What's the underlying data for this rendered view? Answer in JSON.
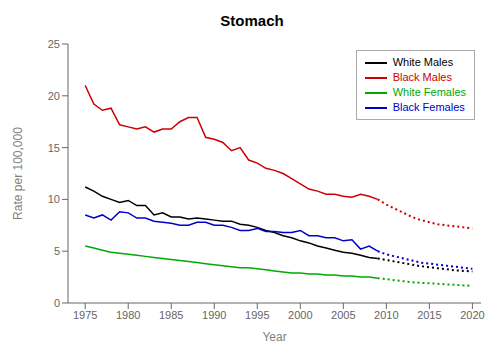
{
  "chart_data": {
    "type": "line",
    "title": "Stomach",
    "xlabel": "Year",
    "ylabel": "Rate per 100,000",
    "xlim": [
      1973,
      2021
    ],
    "ylim": [
      0,
      25
    ],
    "xticks": [
      1975,
      1980,
      1985,
      1990,
      1995,
      2000,
      2005,
      2010,
      2015,
      2020
    ],
    "yticks": [
      0,
      5,
      10,
      15,
      20,
      25
    ],
    "grid": false,
    "legend": "upper right",
    "series": [
      {
        "name": "White Males",
        "color": "#000000",
        "line_style": "solid",
        "x": [
          1975,
          1976,
          1977,
          1978,
          1979,
          1980,
          1981,
          1982,
          1983,
          1984,
          1985,
          1986,
          1987,
          1988,
          1989,
          1990,
          1991,
          1992,
          1993,
          1994,
          1995,
          1996,
          1997,
          1998,
          1999,
          2000,
          2001,
          2002,
          2003,
          2004,
          2005,
          2006,
          2007,
          2008,
          2009
        ],
        "values": [
          11.2,
          10.8,
          10.3,
          10.0,
          9.7,
          9.9,
          9.4,
          9.4,
          8.5,
          8.7,
          8.3,
          8.3,
          8.1,
          8.2,
          8.1,
          8.0,
          7.9,
          7.9,
          7.6,
          7.5,
          7.3,
          7.0,
          6.8,
          6.5,
          6.3,
          6.0,
          5.8,
          5.5,
          5.3,
          5.1,
          4.9,
          4.8,
          4.6,
          4.4,
          4.3
        ]
      },
      {
        "name": "White Males",
        "color": "#000000",
        "line_style": "dotted",
        "x": [
          2009,
          2010,
          2011,
          2012,
          2013,
          2014,
          2015,
          2016,
          2017,
          2018,
          2019,
          2020
        ],
        "values": [
          4.3,
          4.15,
          4.0,
          3.85,
          3.7,
          3.55,
          3.45,
          3.35,
          3.25,
          3.15,
          3.1,
          3.05
        ]
      },
      {
        "name": "Black Males",
        "color": "#cc0000",
        "line_style": "solid",
        "x": [
          1975,
          1976,
          1977,
          1978,
          1979,
          1980,
          1981,
          1982,
          1983,
          1984,
          1985,
          1986,
          1987,
          1988,
          1989,
          1990,
          1991,
          1992,
          1993,
          1994,
          1995,
          1996,
          1997,
          1998,
          1999,
          2000,
          2001,
          2002,
          2003,
          2004,
          2005,
          2006,
          2007,
          2008,
          2009
        ],
        "values": [
          21.0,
          19.2,
          18.6,
          18.8,
          17.2,
          17.0,
          16.8,
          17.0,
          16.5,
          16.8,
          16.8,
          17.5,
          17.9,
          17.9,
          16.0,
          15.8,
          15.5,
          14.7,
          15.0,
          13.8,
          13.5,
          13.0,
          12.8,
          12.5,
          12.0,
          11.5,
          11.0,
          10.8,
          10.5,
          10.5,
          10.3,
          10.2,
          10.5,
          10.3,
          10.0
        ]
      },
      {
        "name": "Black Males",
        "color": "#cc0000",
        "line_style": "dotted",
        "x": [
          2009,
          2010,
          2011,
          2012,
          2013,
          2014,
          2015,
          2016,
          2017,
          2018,
          2019,
          2020
        ],
        "values": [
          10.0,
          9.5,
          9.1,
          8.7,
          8.3,
          8.0,
          7.8,
          7.6,
          7.5,
          7.4,
          7.3,
          7.2
        ]
      },
      {
        "name": "White Females",
        "color": "#00aa00",
        "line_style": "solid",
        "x": [
          1975,
          1976,
          1977,
          1978,
          1979,
          1980,
          1981,
          1982,
          1983,
          1984,
          1985,
          1986,
          1987,
          1988,
          1989,
          1990,
          1991,
          1992,
          1993,
          1994,
          1995,
          1996,
          1997,
          1998,
          1999,
          2000,
          2001,
          2002,
          2003,
          2004,
          2005,
          2006,
          2007,
          2008,
          2009
        ],
        "values": [
          5.5,
          5.3,
          5.1,
          4.9,
          4.8,
          4.7,
          4.6,
          4.5,
          4.4,
          4.3,
          4.2,
          4.1,
          4.0,
          3.9,
          3.8,
          3.7,
          3.6,
          3.5,
          3.4,
          3.4,
          3.3,
          3.2,
          3.1,
          3.0,
          2.9,
          2.9,
          2.8,
          2.8,
          2.7,
          2.7,
          2.6,
          2.6,
          2.5,
          2.5,
          2.4
        ]
      },
      {
        "name": "White Females",
        "color": "#00aa00",
        "line_style": "dotted",
        "x": [
          2009,
          2010,
          2011,
          2012,
          2013,
          2014,
          2015,
          2016,
          2017,
          2018,
          2019,
          2020
        ],
        "values": [
          2.4,
          2.3,
          2.2,
          2.1,
          2.0,
          1.95,
          1.9,
          1.85,
          1.8,
          1.75,
          1.7,
          1.65
        ]
      },
      {
        "name": "Black Females",
        "color": "#0000cc",
        "line_style": "solid",
        "x": [
          1975,
          1976,
          1977,
          1978,
          1979,
          1980,
          1981,
          1982,
          1983,
          1984,
          1985,
          1986,
          1987,
          1988,
          1989,
          1990,
          1991,
          1992,
          1993,
          1994,
          1995,
          1996,
          1997,
          1998,
          1999,
          2000,
          2001,
          2002,
          2003,
          2004,
          2005,
          2006,
          2007,
          2008,
          2009
        ],
        "values": [
          8.5,
          8.2,
          8.5,
          8.0,
          8.8,
          8.7,
          8.2,
          8.2,
          7.9,
          7.8,
          7.7,
          7.5,
          7.5,
          7.8,
          7.8,
          7.5,
          7.5,
          7.3,
          7.0,
          7.0,
          7.2,
          6.9,
          6.9,
          6.8,
          6.8,
          7.0,
          6.5,
          6.5,
          6.3,
          6.3,
          6.0,
          6.1,
          5.2,
          5.5,
          5.0
        ]
      },
      {
        "name": "Black Females",
        "color": "#0000cc",
        "line_style": "dotted",
        "x": [
          2009,
          2010,
          2011,
          2012,
          2013,
          2014,
          2015,
          2016,
          2017,
          2018,
          2019,
          2020
        ],
        "values": [
          5.0,
          4.7,
          4.5,
          4.3,
          4.1,
          3.9,
          3.8,
          3.7,
          3.6,
          3.5,
          3.4,
          3.3
        ]
      }
    ]
  }
}
